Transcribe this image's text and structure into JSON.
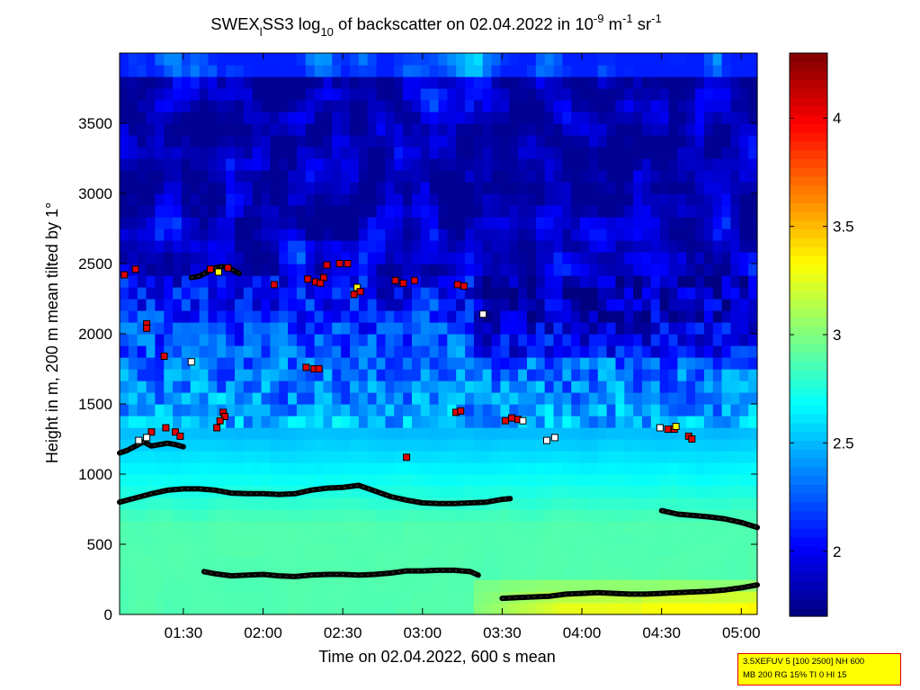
{
  "chart_data": {
    "type": "heatmap",
    "title": {
      "prefix": "SWEX",
      "sub_l": "l",
      "mid1": "SS3 log",
      "sub_10": "10",
      "mid2": " of backscatter on 02.04.2022 in 10",
      "sup_1": "-9",
      "mid3": " m",
      "sup_2": "-1",
      "mid4": " sr",
      "sup_3": "-1"
    },
    "xlabel": "Time on 02.04.2022, 600 s mean",
    "ylabel": "Height in m, 200 m mean tilted by 1°",
    "x_range_hours": [
      1.1,
      5.1
    ],
    "y_range": [
      0,
      4000
    ],
    "x_ticks": [
      {
        "label": "01:30",
        "h": 1.5
      },
      {
        "label": "02:00",
        "h": 2.0
      },
      {
        "label": "02:30",
        "h": 2.5
      },
      {
        "label": "03:00",
        "h": 3.0
      },
      {
        "label": "03:30",
        "h": 3.5
      },
      {
        "label": "04:00",
        "h": 4.0
      },
      {
        "label": "04:30",
        "h": 4.5
      },
      {
        "label": "05:00",
        "h": 5.0
      }
    ],
    "y_ticks": [
      0,
      500,
      1000,
      1500,
      2000,
      2500,
      3000,
      3500
    ],
    "colorbar": {
      "range": [
        1.7,
        4.3
      ],
      "ticks": [
        2,
        2.5,
        3,
        3.5,
        4
      ],
      "colormap": "jet"
    },
    "layers": [
      {
        "name": "lower layer",
        "points": [
          [
            1.1,
            800
          ],
          [
            1.2,
            830
          ],
          [
            1.3,
            860
          ],
          [
            1.4,
            885
          ],
          [
            1.5,
            895
          ],
          [
            1.6,
            895
          ],
          [
            1.7,
            885
          ],
          [
            1.8,
            865
          ],
          [
            1.9,
            860
          ],
          [
            2.0,
            860
          ],
          [
            2.1,
            855
          ],
          [
            2.2,
            860
          ],
          [
            2.3,
            885
          ],
          [
            2.4,
            900
          ],
          [
            2.5,
            905
          ],
          [
            2.6,
            920
          ],
          [
            2.7,
            880
          ],
          [
            2.8,
            840
          ],
          [
            2.9,
            815
          ],
          [
            3.0,
            795
          ],
          [
            3.1,
            790
          ],
          [
            3.2,
            790
          ],
          [
            3.3,
            795
          ],
          [
            3.4,
            800
          ],
          [
            3.5,
            820
          ],
          [
            3.55,
            825
          ]
        ]
      },
      {
        "name": "upper layer right",
        "points": [
          [
            4.5,
            740
          ],
          [
            4.6,
            715
          ],
          [
            4.7,
            705
          ],
          [
            4.8,
            695
          ],
          [
            4.9,
            680
          ],
          [
            5.0,
            655
          ],
          [
            5.1,
            620
          ]
        ]
      },
      {
        "name": "low layer A",
        "points": [
          [
            1.63,
            305
          ],
          [
            1.7,
            290
          ],
          [
            1.8,
            275
          ],
          [
            1.9,
            280
          ],
          [
            2.0,
            285
          ],
          [
            2.1,
            275
          ],
          [
            2.2,
            270
          ],
          [
            2.3,
            280
          ],
          [
            2.4,
            285
          ],
          [
            2.5,
            285
          ],
          [
            2.6,
            280
          ],
          [
            2.7,
            285
          ],
          [
            2.8,
            295
          ],
          [
            2.9,
            310
          ],
          [
            3.0,
            310
          ],
          [
            3.1,
            315
          ],
          [
            3.2,
            315
          ],
          [
            3.3,
            305
          ],
          [
            3.35,
            280
          ]
        ]
      },
      {
        "name": "low layer B",
        "points": [
          [
            3.5,
            115
          ],
          [
            3.6,
            120
          ],
          [
            3.7,
            125
          ],
          [
            3.8,
            130
          ],
          [
            3.9,
            145
          ],
          [
            4.0,
            150
          ],
          [
            4.1,
            155
          ],
          [
            4.2,
            150
          ],
          [
            4.3,
            145
          ],
          [
            4.4,
            145
          ],
          [
            4.5,
            150
          ],
          [
            4.6,
            155
          ],
          [
            4.7,
            160
          ],
          [
            4.8,
            165
          ],
          [
            4.9,
            175
          ],
          [
            5.0,
            190
          ],
          [
            5.1,
            210
          ]
        ]
      },
      {
        "name": "cloud layer left",
        "points": [
          [
            1.1,
            1150
          ],
          [
            1.15,
            1170
          ],
          [
            1.2,
            1200
          ],
          [
            1.25,
            1230
          ],
          [
            1.3,
            1200
          ],
          [
            1.35,
            1210
          ],
          [
            1.4,
            1220
          ],
          [
            1.45,
            1210
          ],
          [
            1.5,
            1195
          ]
        ]
      },
      {
        "name": "upper layer left",
        "points": [
          [
            1.55,
            2400
          ],
          [
            1.6,
            2410
          ],
          [
            1.65,
            2440
          ],
          [
            1.7,
            2470
          ],
          [
            1.75,
            2480
          ],
          [
            1.8,
            2460
          ],
          [
            1.85,
            2430
          ]
        ]
      }
    ],
    "markers": [
      {
        "x": 1.13,
        "y": 2420,
        "c": "red"
      },
      {
        "x": 1.2,
        "y": 2460,
        "c": "red"
      },
      {
        "x": 1.27,
        "y": 2070,
        "c": "red"
      },
      {
        "x": 1.27,
        "y": 2040,
        "c": "red"
      },
      {
        "x": 1.38,
        "y": 1840,
        "c": "red"
      },
      {
        "x": 1.55,
        "y": 1800,
        "c": "white"
      },
      {
        "x": 1.3,
        "y": 1300,
        "c": "red"
      },
      {
        "x": 1.39,
        "y": 1330,
        "c": "red"
      },
      {
        "x": 1.45,
        "y": 1300,
        "c": "red"
      },
      {
        "x": 1.48,
        "y": 1270,
        "c": "red"
      },
      {
        "x": 1.27,
        "y": 1260,
        "c": "white"
      },
      {
        "x": 1.22,
        "y": 1240,
        "c": "white"
      },
      {
        "x": 1.67,
        "y": 2460,
        "c": "red"
      },
      {
        "x": 1.72,
        "y": 2440,
        "c": "yellow"
      },
      {
        "x": 1.78,
        "y": 2470,
        "c": "red"
      },
      {
        "x": 1.71,
        "y": 1330,
        "c": "red"
      },
      {
        "x": 1.75,
        "y": 1440,
        "c": "red"
      },
      {
        "x": 1.76,
        "y": 1410,
        "c": "red"
      },
      {
        "x": 1.73,
        "y": 1380,
        "c": "red"
      },
      {
        "x": 2.07,
        "y": 2350,
        "c": "red"
      },
      {
        "x": 2.28,
        "y": 2390,
        "c": "red"
      },
      {
        "x": 2.33,
        "y": 2370,
        "c": "red"
      },
      {
        "x": 2.38,
        "y": 2400,
        "c": "red"
      },
      {
        "x": 2.4,
        "y": 2490,
        "c": "red"
      },
      {
        "x": 2.48,
        "y": 2500,
        "c": "red"
      },
      {
        "x": 2.53,
        "y": 2500,
        "c": "red"
      },
      {
        "x": 2.36,
        "y": 2360,
        "c": "red"
      },
      {
        "x": 2.57,
        "y": 2280,
        "c": "red"
      },
      {
        "x": 2.59,
        "y": 2330,
        "c": "yellow"
      },
      {
        "x": 2.61,
        "y": 2300,
        "c": "red"
      },
      {
        "x": 2.27,
        "y": 1760,
        "c": "red"
      },
      {
        "x": 2.32,
        "y": 1750,
        "c": "red"
      },
      {
        "x": 2.35,
        "y": 1750,
        "c": "red"
      },
      {
        "x": 2.83,
        "y": 2380,
        "c": "red"
      },
      {
        "x": 2.88,
        "y": 2360,
        "c": "red"
      },
      {
        "x": 2.95,
        "y": 2380,
        "c": "red"
      },
      {
        "x": 2.9,
        "y": 1120,
        "c": "red"
      },
      {
        "x": 3.22,
        "y": 2350,
        "c": "red"
      },
      {
        "x": 3.26,
        "y": 2340,
        "c": "red"
      },
      {
        "x": 3.38,
        "y": 2140,
        "c": "white"
      },
      {
        "x": 3.21,
        "y": 1440,
        "c": "red"
      },
      {
        "x": 3.24,
        "y": 1450,
        "c": "red"
      },
      {
        "x": 3.52,
        "y": 1380,
        "c": "red"
      },
      {
        "x": 3.56,
        "y": 1400,
        "c": "red"
      },
      {
        "x": 3.6,
        "y": 1390,
        "c": "red"
      },
      {
        "x": 3.63,
        "y": 1380,
        "c": "white"
      },
      {
        "x": 3.78,
        "y": 1240,
        "c": "white"
      },
      {
        "x": 3.83,
        "y": 1260,
        "c": "white"
      },
      {
        "x": 4.49,
        "y": 1330,
        "c": "white"
      },
      {
        "x": 4.54,
        "y": 1320,
        "c": "red"
      },
      {
        "x": 4.58,
        "y": 1320,
        "c": "red"
      },
      {
        "x": 4.59,
        "y": 1340,
        "c": "yellow"
      },
      {
        "x": 4.67,
        "y": 1270,
        "c": "red"
      },
      {
        "x": 4.69,
        "y": 1250,
        "c": "red"
      }
    ]
  },
  "badge": {
    "line1": "3.5XEFUV 5 [100 2500] NH 600",
    "line2": "MB 200 RG 15% TI 0 HI 15"
  }
}
